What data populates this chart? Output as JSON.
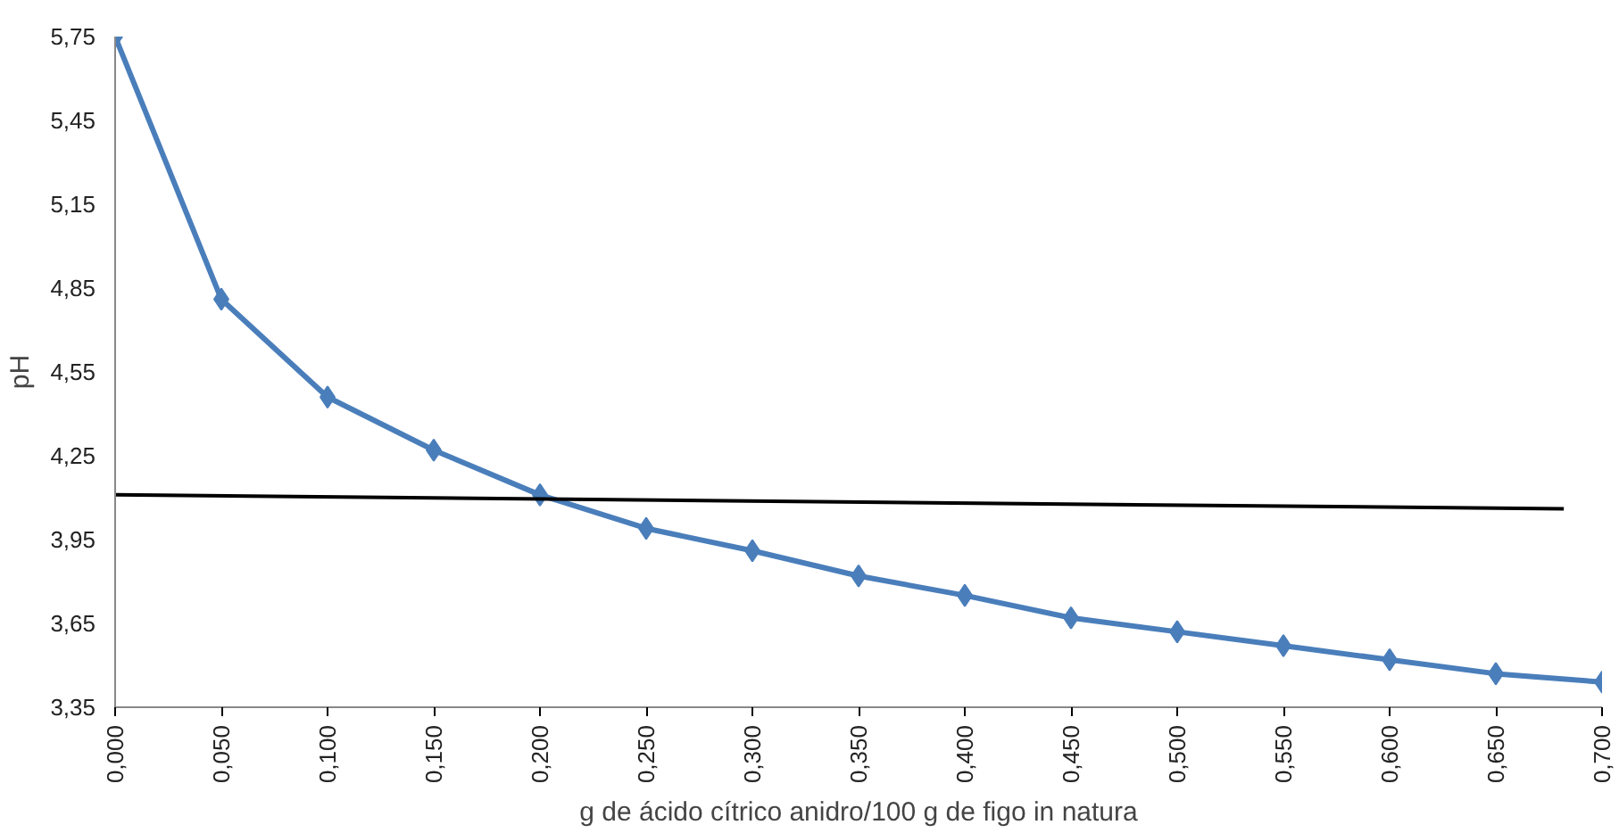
{
  "chart_data": {
    "type": "line",
    "xlabel": "g de ácido cítrico anidro/100 g de figo in natura",
    "ylabel": "pH",
    "x": [
      0,
      0.05,
      0.1,
      0.15,
      0.2,
      0.25,
      0.3,
      0.35,
      0.4,
      0.45,
      0.5,
      0.55,
      0.6,
      0.65,
      0.7
    ],
    "series": [
      {
        "color": "#4a7ebb",
        "marker": "diamond",
        "values": [
          5.75,
          4.81,
          4.46,
          4.27,
          4.11,
          3.99,
          3.91,
          3.82,
          3.75,
          3.67,
          3.62,
          3.57,
          3.52,
          3.47,
          3.44
        ]
      },
      {
        "color": "#000000",
        "marker": "none",
        "x": [
          0,
          0.682
        ],
        "values": [
          4.11,
          4.06
        ]
      }
    ],
    "xlim": [
      0,
      0.7
    ],
    "xticks": [
      {
        "value": 0,
        "label": "0,000"
      },
      {
        "value": 0.05,
        "label": "0,050"
      },
      {
        "value": 0.1,
        "label": "0,100"
      },
      {
        "value": 0.15,
        "label": "0,150"
      },
      {
        "value": 0.2,
        "label": "0,200"
      },
      {
        "value": 0.25,
        "label": "0,250"
      },
      {
        "value": 0.3,
        "label": "0,300"
      },
      {
        "value": 0.35,
        "label": "0,350"
      },
      {
        "value": 0.4,
        "label": "0,400"
      },
      {
        "value": 0.45,
        "label": "0,450"
      },
      {
        "value": 0.5,
        "label": "0,500"
      },
      {
        "value": 0.55,
        "label": "0,550"
      },
      {
        "value": 0.6,
        "label": "0,600"
      },
      {
        "value": 0.65,
        "label": "0,650"
      },
      {
        "value": 0.7,
        "label": "0,700"
      }
    ],
    "ylim": [
      3.35,
      5.75
    ],
    "yticks": [
      {
        "value": 3.35,
        "label": "3,35"
      },
      {
        "value": 3.65,
        "label": "3,65"
      },
      {
        "value": 3.95,
        "label": "3,95"
      },
      {
        "value": 4.25,
        "label": "4,25"
      },
      {
        "value": 4.55,
        "label": "4,55"
      },
      {
        "value": 4.85,
        "label": "4,85"
      },
      {
        "value": 5.15,
        "label": "5,15"
      },
      {
        "value": 5.45,
        "label": "5,45"
      },
      {
        "value": 5.75,
        "label": "5,75"
      }
    ],
    "grid": false
  }
}
